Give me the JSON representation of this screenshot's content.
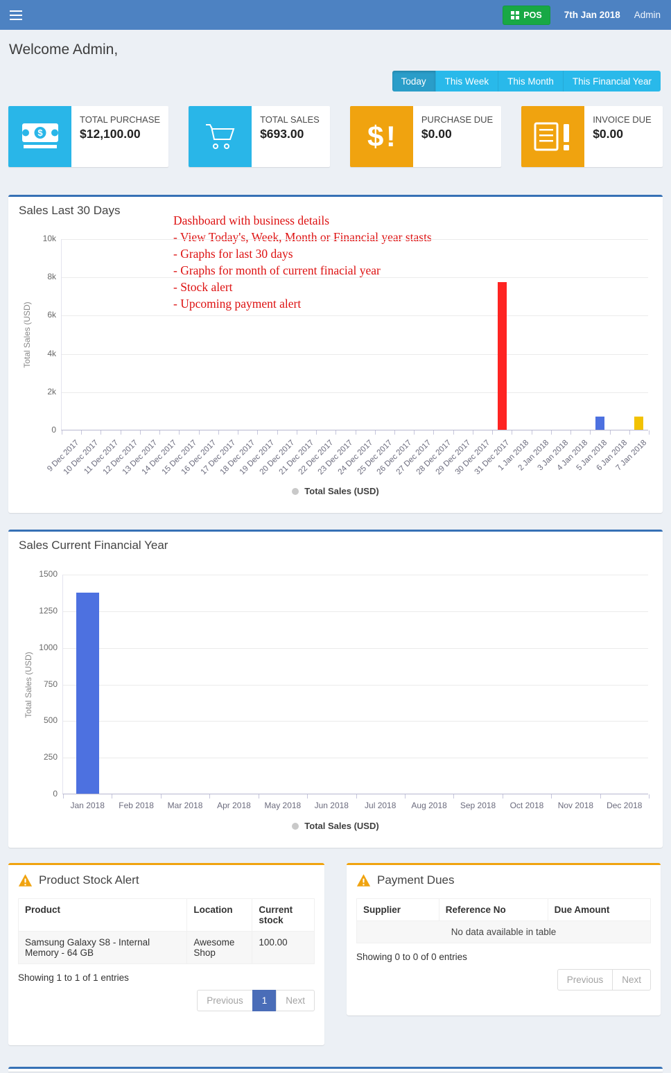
{
  "navbar": {
    "pos_button_label": "POS",
    "date": "7th Jan 2018",
    "user": "Admin"
  },
  "welcome_heading": "Welcome Admin,",
  "filter_tabs": {
    "today": "Today",
    "this_week": "This Week",
    "this_month": "This Month",
    "this_financial_year": "This Financial Year",
    "active_tab": "Today"
  },
  "stat_cards": [
    {
      "label": "TOTAL PURCHASE",
      "value": "$12,100.00",
      "icon": "money-icon",
      "color": "#29b6e8"
    },
    {
      "label": "TOTAL SALES",
      "value": "$693.00",
      "icon": "cart-icon",
      "color": "#29b6e8"
    },
    {
      "label": "PURCHASE DUE",
      "value": "$0.00",
      "icon": "dollar-exclamation-icon",
      "color": "#f0a30f"
    },
    {
      "label": "INVOICE DUE",
      "value": "$0.00",
      "icon": "invoice-exclamation-icon",
      "color": "#f0a30f"
    }
  ],
  "annotation": {
    "color": "#dd1111",
    "lines": [
      "Dashboard with business details",
      "- View Today's, Week, Month or Financial year stasts",
      "- Graphs for last 30 days",
      "- Graphs for month of current finacial year",
      "- Stock alert",
      "- Upcoming payment alert"
    ]
  },
  "chart_data": [
    {
      "type": "bar",
      "title": "Sales Last 30 Days",
      "ylabel": "Total Sales (USD)",
      "legend": "Total Sales (USD)",
      "ylim": [
        0,
        10000
      ],
      "ytick_labels": [
        "0",
        "2k",
        "4k",
        "6k",
        "8k",
        "10k"
      ],
      "grid": true,
      "legend_position": "bottom",
      "x_label_rotate": true,
      "categories": [
        "9 Dec 2017",
        "10 Dec 2017",
        "11 Dec 2017",
        "12 Dec 2017",
        "13 Dec 2017",
        "14 Dec 2017",
        "15 Dec 2017",
        "16 Dec 2017",
        "17 Dec 2017",
        "18 Dec 2017",
        "19 Dec 2017",
        "20 Dec 2017",
        "21 Dec 2017",
        "22 Dec 2017",
        "23 Dec 2017",
        "24 Dec 2017",
        "25 Dec 2017",
        "26 Dec 2017",
        "27 Dec 2017",
        "28 Dec 2017",
        "29 Dec 2017",
        "30 Dec 2017",
        "31 Dec 2017",
        "1 Jan 2018",
        "2 Jan 2018",
        "3 Jan 2018",
        "4 Jan 2018",
        "5 Jan 2018",
        "6 Jan 2018",
        "7 Jan 2018"
      ],
      "values": [
        0,
        0,
        0,
        0,
        0,
        0,
        0,
        0,
        0,
        0,
        0,
        0,
        0,
        0,
        0,
        0,
        0,
        0,
        0,
        0,
        0,
        0,
        7700,
        0,
        0,
        0,
        0,
        680,
        0,
        693
      ],
      "bar_colors": {
        "31 Dec 2017": "#fe2422",
        "5 Jan 2018": "#4d71e0",
        "7 Jan 2018": "#f2c202"
      },
      "default_bar_color": "#4d71e0"
    },
    {
      "type": "bar",
      "title": "Sales Current Financial Year",
      "ylabel": "Total Sales (USD)",
      "legend": "Total Sales (USD)",
      "ylim": [
        0,
        1500
      ],
      "ytick_labels": [
        "0",
        "250",
        "500",
        "750",
        "1000",
        "1250",
        "1500"
      ],
      "grid": true,
      "legend_position": "bottom",
      "x_label_rotate": false,
      "categories": [
        "Jan 2018",
        "Feb 2018",
        "Mar 2018",
        "Apr 2018",
        "May 2018",
        "Jun 2018",
        "Jul 2018",
        "Aug 2018",
        "Sep 2018",
        "Oct 2018",
        "Nov 2018",
        "Dec 2018"
      ],
      "values": [
        1370,
        0,
        0,
        0,
        0,
        0,
        0,
        0,
        0,
        0,
        0,
        0
      ],
      "bar_colors": {},
      "default_bar_color": "#4d71e0"
    }
  ],
  "stock_alert": {
    "title": "Product Stock Alert",
    "columns": [
      "Product",
      "Location",
      "Current stock"
    ],
    "rows": [
      [
        "Samsung Galaxy S8 - Internal Memory - 64 GB",
        "Awesome Shop",
        "100.00"
      ]
    ],
    "summary": "Showing 1 to 1 of 1 entries",
    "pagination": {
      "previous": "Previous",
      "page": "1",
      "next": "Next"
    }
  },
  "payment_dues": {
    "title": "Payment Dues",
    "columns": [
      "Supplier",
      "Reference No",
      "Due Amount"
    ],
    "empty_message": "No data available in table",
    "summary": "Showing 0 to 0 of 0 entries",
    "pagination": {
      "previous": "Previous",
      "next": "Next"
    }
  },
  "colors": {
    "navbar": "#4d82c2",
    "info_button": "#29b9ea",
    "info_button_active": "#2a9dc9",
    "aqua_icon": "#29b6e8",
    "orange_icon": "#f0a30f",
    "pos_green": "#18a845",
    "panel_top_blue": "#3671b5",
    "panel_top_orange": "#f0a30f",
    "bar_red": "#fe2422",
    "bar_blue": "#4d71e0",
    "bar_yellow": "#f2c202",
    "pagination_active": "#4a6db8",
    "annotation_red": "#dd1111"
  }
}
